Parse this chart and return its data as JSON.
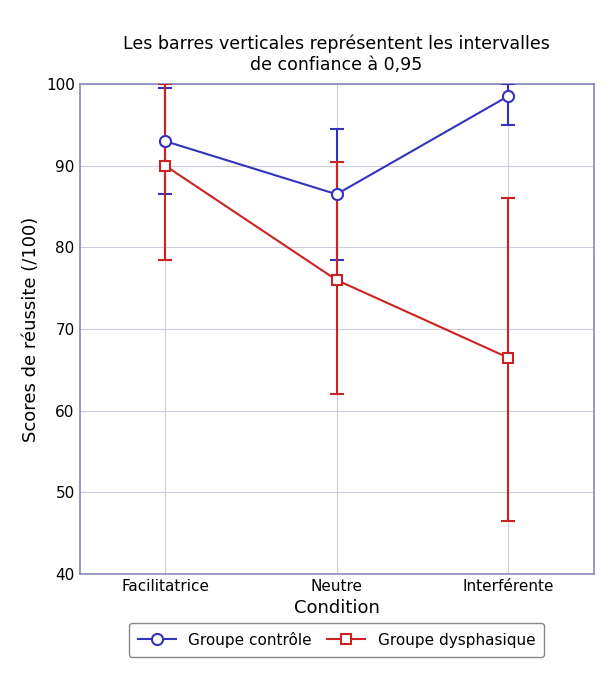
{
  "title": "Les barres verticales représentent les intervalles\nde confiance à 0,95",
  "xlabel": "Condition",
  "ylabel": "Scores de réussite (/100)",
  "categories": [
    "Facilitatrice",
    "Neutre",
    "Interférente"
  ],
  "x_positions": [
    0,
    1,
    2
  ],
  "ylim": [
    40,
    100
  ],
  "yticks": [
    40,
    50,
    60,
    70,
    80,
    90,
    100
  ],
  "controle_means": [
    93,
    86.5,
    98.5
  ],
  "controle_err_low": [
    6.5,
    8.0,
    3.5
  ],
  "controle_err_high": [
    6.5,
    8.0,
    1.5
  ],
  "controle_color": "#3333bb",
  "controle_label": "Groupe contrôle",
  "dysphasique_means": [
    90,
    76,
    66.5
  ],
  "dysphasique_err_low": [
    11.5,
    14.0,
    20.0
  ],
  "dysphasique_err_high": [
    10.0,
    14.5,
    19.5
  ],
  "dysphasique_color": "#cc2222",
  "dysphasique_label": "Groupe dysphasique",
  "background_color": "#ffffff",
  "plot_bg_color": "#ffffff",
  "border_color": "#8888bb",
  "grid_color": "#ccccdd",
  "title_fontsize": 12.5,
  "label_fontsize": 13,
  "tick_fontsize": 11,
  "legend_fontsize": 11
}
